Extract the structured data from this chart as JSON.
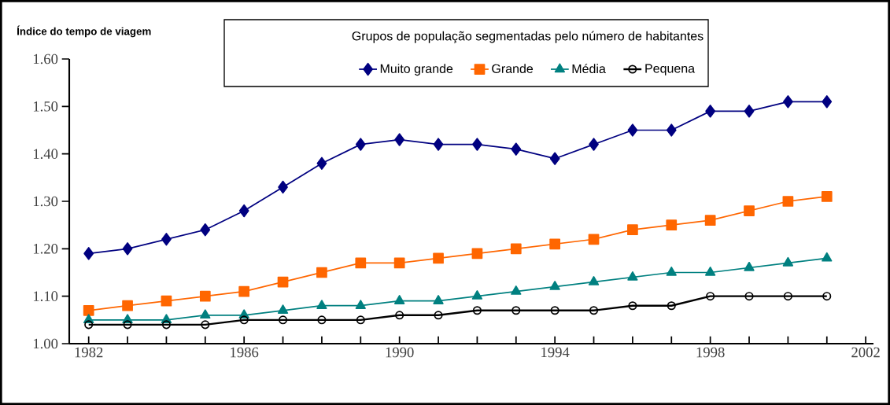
{
  "chart_data": {
    "type": "line",
    "ylabel": "Índice do tempo de viagem",
    "legend_title": "Grupos de população segmentadas pelo número de habitantes",
    "x": [
      1982,
      1983,
      1984,
      1985,
      1986,
      1987,
      1988,
      1989,
      1990,
      1991,
      1992,
      1993,
      1994,
      1995,
      1996,
      1997,
      1998,
      1999,
      2000,
      2001
    ],
    "series": [
      {
        "name": "Muito grande",
        "color": "#000080",
        "marker": "diamond",
        "values": [
          1.19,
          1.2,
          1.22,
          1.24,
          1.28,
          1.33,
          1.38,
          1.42,
          1.43,
          1.42,
          1.42,
          1.41,
          1.39,
          1.42,
          1.45,
          1.45,
          1.49,
          1.49,
          1.51,
          1.51
        ]
      },
      {
        "name": "Grande",
        "color": "#ff6600",
        "marker": "square",
        "values": [
          1.07,
          1.08,
          1.09,
          1.1,
          1.11,
          1.13,
          1.15,
          1.17,
          1.17,
          1.18,
          1.19,
          1.2,
          1.21,
          1.22,
          1.24,
          1.25,
          1.26,
          1.28,
          1.3,
          1.31
        ]
      },
      {
        "name": "Média",
        "color": "#008080",
        "marker": "triangle",
        "values": [
          1.05,
          1.05,
          1.05,
          1.06,
          1.06,
          1.07,
          1.08,
          1.08,
          1.09,
          1.09,
          1.1,
          1.11,
          1.12,
          1.13,
          1.14,
          1.15,
          1.15,
          1.16,
          1.17,
          1.18
        ]
      },
      {
        "name": "Pequena",
        "color": "#000000",
        "marker": "circle",
        "values": [
          1.04,
          1.04,
          1.04,
          1.04,
          1.05,
          1.05,
          1.05,
          1.05,
          1.06,
          1.06,
          1.07,
          1.07,
          1.07,
          1.07,
          1.08,
          1.08,
          1.1,
          1.1,
          1.1,
          1.1
        ]
      }
    ],
    "xlim": [
      1981.5,
      2002.2
    ],
    "ylim": [
      1.0,
      1.6
    ],
    "xticks": [
      1982,
      {
        "value": 1983,
        "label": null
      },
      {
        "value": 1984,
        "label": null
      },
      {
        "value": 1985,
        "label": null
      },
      1986,
      {
        "value": 1987,
        "label": null
      },
      {
        "value": 1988,
        "label": null
      },
      {
        "value": 1989,
        "label": null
      },
      1990,
      {
        "value": 1991,
        "label": null
      },
      {
        "value": 1992,
        "label": null
      },
      {
        "value": 1993,
        "label": null
      },
      1994,
      {
        "value": 1995,
        "label": null
      },
      {
        "value": 1996,
        "label": null
      },
      {
        "value": 1997,
        "label": null
      },
      1998,
      {
        "value": 1999,
        "label": null
      },
      {
        "value": 2000,
        "label": null
      },
      {
        "value": 2001,
        "label": null
      },
      2002
    ],
    "yticks": [
      {
        "value": 1.0,
        "label": "1.00"
      },
      {
        "value": 1.1,
        "label": "1.10"
      },
      {
        "value": 1.2,
        "label": "1.20"
      },
      {
        "value": 1.3,
        "label": "1.30"
      },
      {
        "value": 1.4,
        "label": "1.40"
      },
      {
        "value": 1.5,
        "label": "1.50"
      },
      {
        "value": 1.6,
        "label": "1.60"
      }
    ],
    "legend": "top"
  }
}
